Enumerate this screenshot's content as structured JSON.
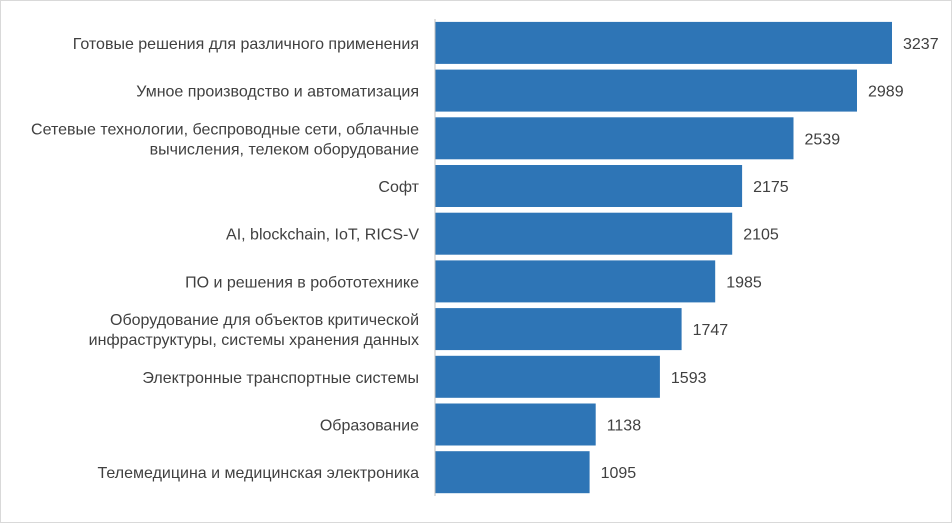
{
  "chart_data": {
    "type": "bar",
    "orientation": "horizontal",
    "categories": [
      [
        "Готовые решения для различного применения"
      ],
      [
        "Умное производство и автоматизация"
      ],
      [
        "Сетевые технологии, беспроводные сети, облачные",
        "вычисления, телеком оборудование"
      ],
      [
        "Софт"
      ],
      [
        "AI, blockchain, IoT, RICS-V"
      ],
      [
        "ПО и решения в робототехнике"
      ],
      [
        "Оборудование для объектов критической",
        "инфраструктуры, системы хранения данных"
      ],
      [
        "Электронные транспортные системы"
      ],
      [
        "Образование"
      ],
      [
        "Телемедицина и медицинская электроника"
      ]
    ],
    "values": [
      3237,
      2989,
      2539,
      2175,
      2105,
      1985,
      1747,
      1593,
      1138,
      1095
    ],
    "value_labels": [
      "3237",
      "2989",
      "2539",
      "2175",
      "2105",
      "1985",
      "1747",
      "1593",
      "1138",
      "1095"
    ],
    "title": "",
    "xlabel": "",
    "ylabel": "",
    "xlim": [
      0,
      3237
    ],
    "grid": false,
    "legend": "none",
    "colors": {
      "bar": "#2e75b6",
      "text": "#404040",
      "axis": "#bfbfbf"
    }
  }
}
